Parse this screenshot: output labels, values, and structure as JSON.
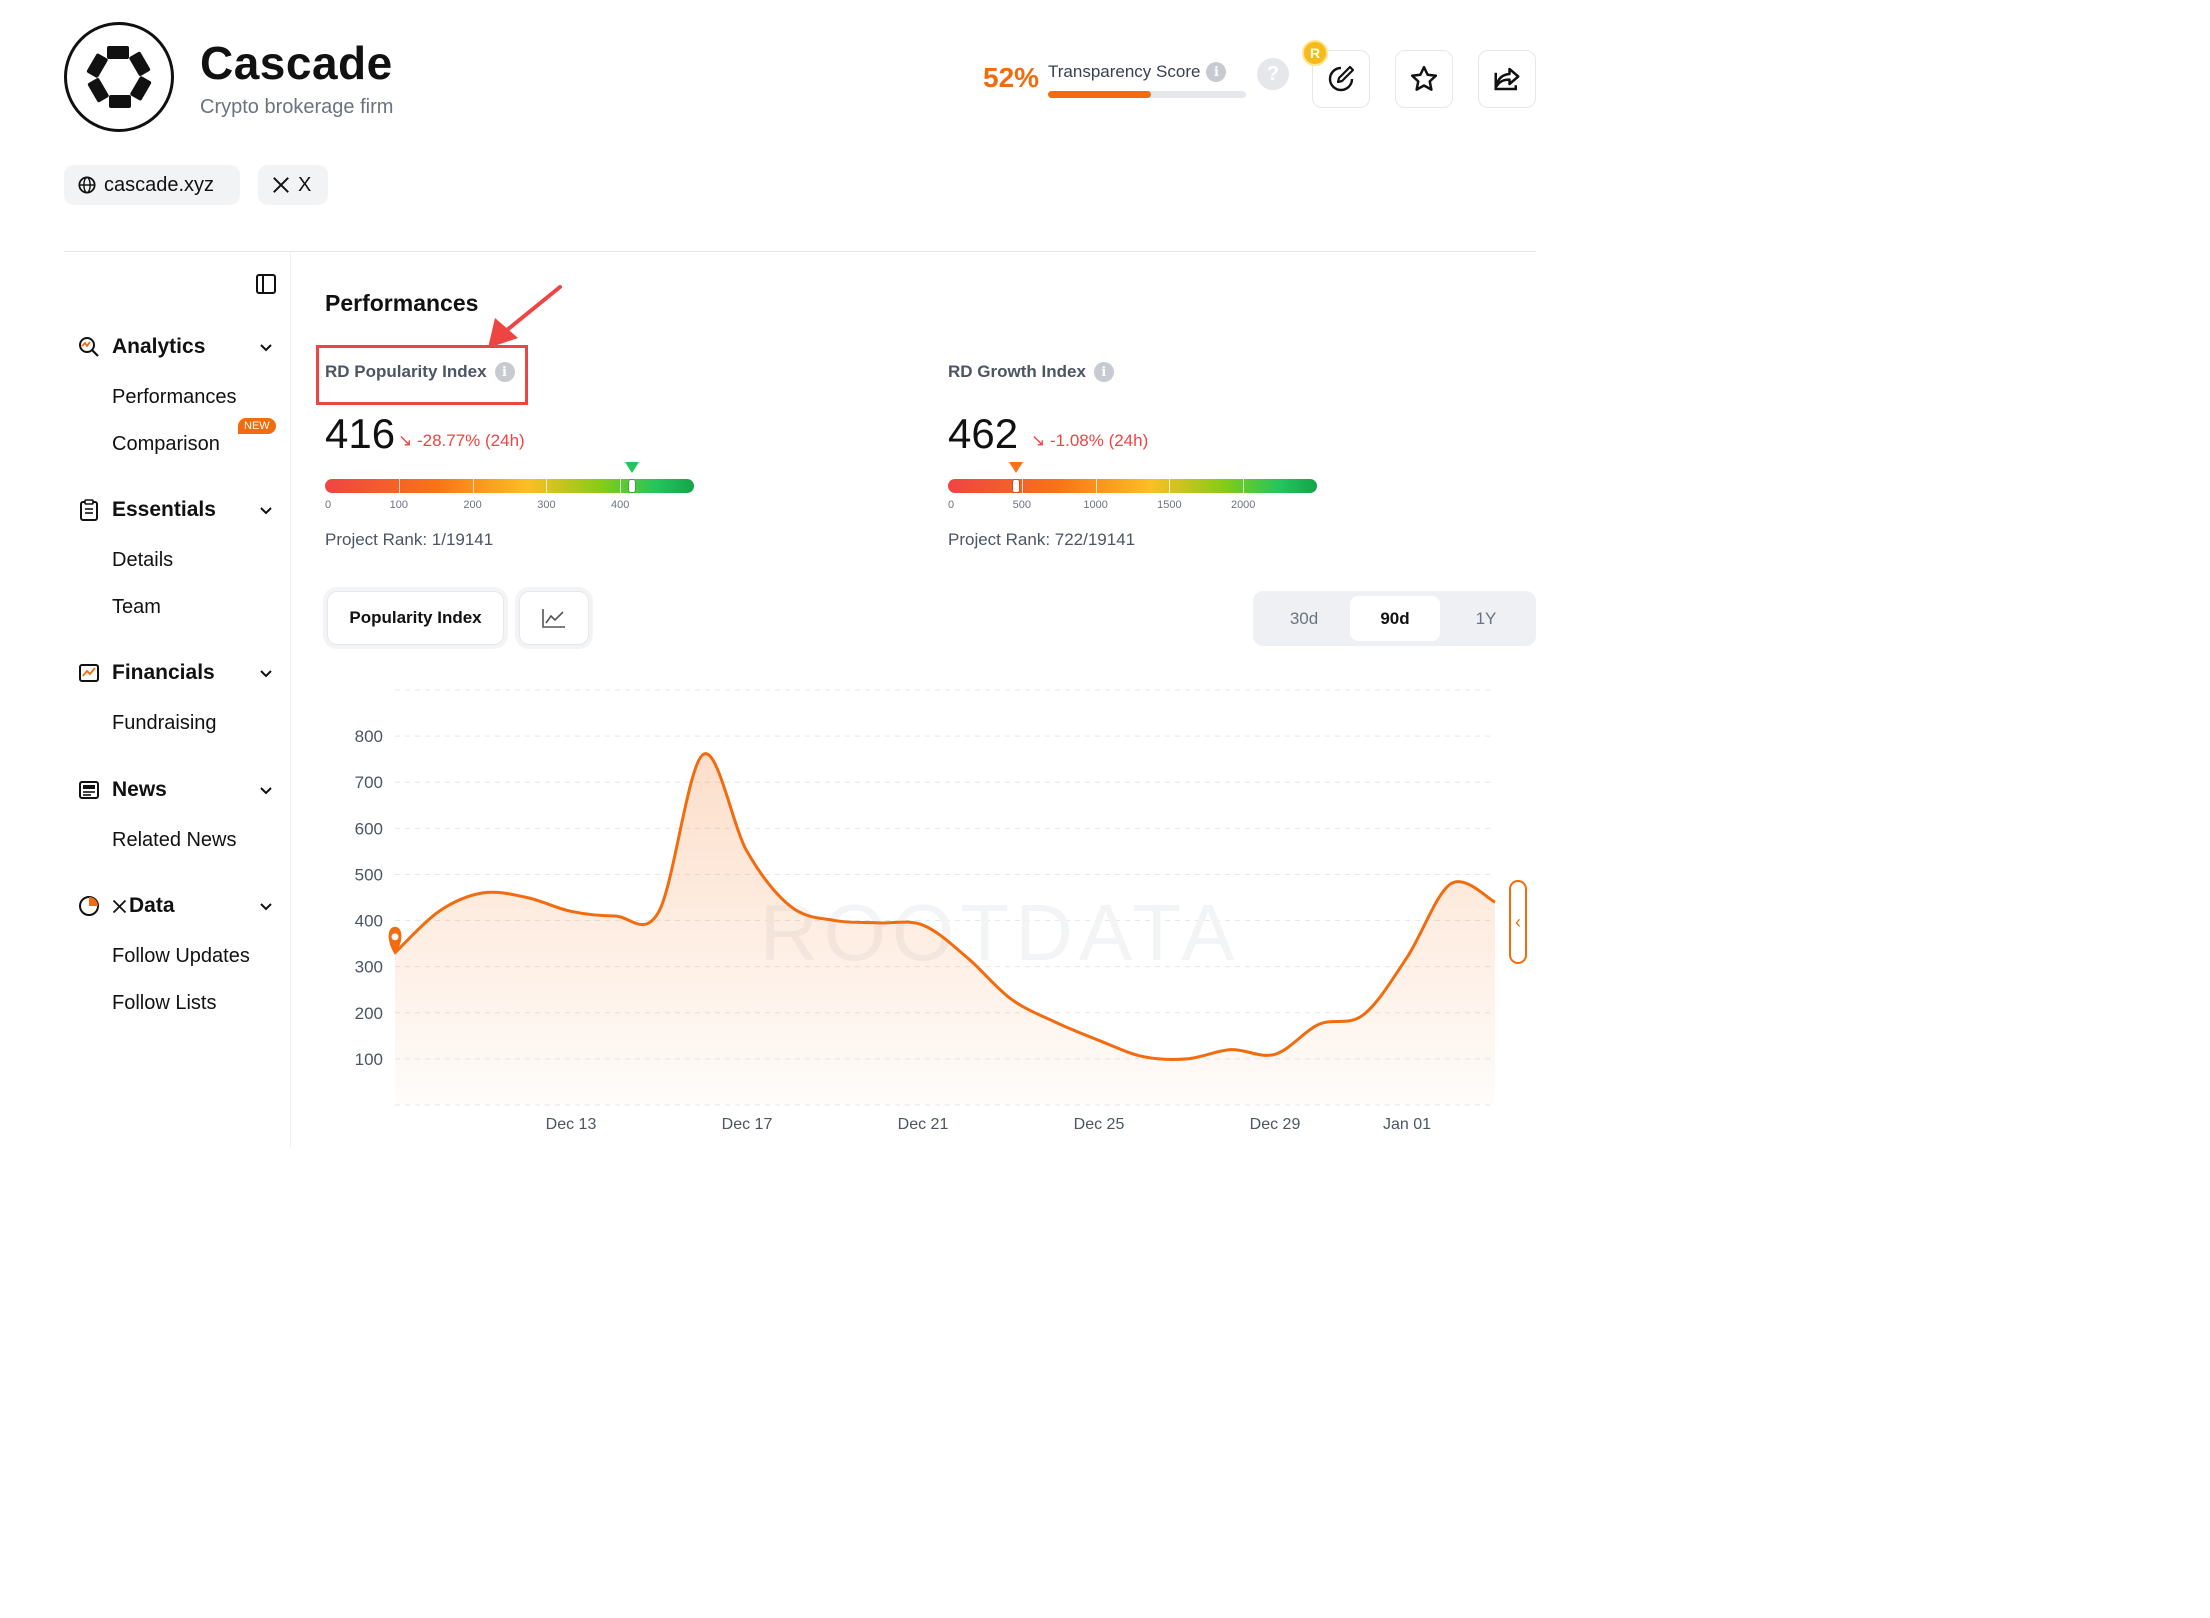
{
  "header": {
    "title": "Cascade",
    "subtitle": "Crypto brokerage firm",
    "links": [
      {
        "label": "cascade.xyz",
        "icon": "globe-icon"
      },
      {
        "label": "X",
        "icon": "x-logo-icon"
      }
    ],
    "transparency": {
      "percent_text": "52%",
      "label": "Transparency Score",
      "value": 0.52
    },
    "coin_badge": "R"
  },
  "sidebar": {
    "groups": [
      {
        "label": "Analytics",
        "icon": "analytics-icon",
        "items": [
          "Performances",
          "Comparison"
        ]
      },
      {
        "label": "Essentials",
        "icon": "clipboard-icon",
        "items": [
          "Details",
          "Team"
        ]
      },
      {
        "label": "Financials",
        "icon": "financials-icon",
        "items": [
          "Fundraising"
        ]
      },
      {
        "label": "News",
        "icon": "news-icon",
        "items": [
          "Related News"
        ]
      },
      {
        "label": "Data",
        "icon": "pie-icon",
        "items": [
          "Follow Updates",
          "Follow Lists"
        ]
      }
    ],
    "new_badge": "NEW"
  },
  "main": {
    "title": "Performances",
    "popularity": {
      "label": "RD Popularity Index",
      "value": "416",
      "delta": "-28.77% (24h)",
      "ticks": [
        "0",
        "100",
        "200",
        "300",
        "400"
      ],
      "rank": "Project Rank: 1/19141",
      "gauge_value": 416,
      "gauge_max": 500
    },
    "growth": {
      "label": "RD Growth Index",
      "value": "462",
      "delta": "-1.08% (24h)",
      "ticks": [
        "0",
        "500",
        "1000",
        "1500",
        "2000"
      ],
      "rank": "Project Rank: 722/19141",
      "gauge_value": 462,
      "gauge_max": 2500
    },
    "chart_tab": "Popularity Index",
    "ranges": [
      "30d",
      "90d",
      "1Y"
    ],
    "active_range": "90d"
  },
  "chart_data": {
    "type": "area",
    "color": "#f26b0f",
    "ylim": [
      0,
      900
    ],
    "yticks": [
      100,
      200,
      300,
      400,
      500,
      600,
      700,
      800
    ],
    "xticks": [
      "Dec 13",
      "Dec 17",
      "Dec 21",
      "Dec 25",
      "Dec 29",
      "Jan 01"
    ],
    "watermark": "ROOTDATA",
    "x": [
      "Dec 9",
      "Dec 10",
      "Dec 11",
      "Dec 12",
      "Dec 13",
      "Dec 14",
      "Dec 15",
      "Dec 16",
      "Dec 17",
      "Dec 18",
      "Dec 19",
      "Dec 20",
      "Dec 21",
      "Dec 22",
      "Dec 23",
      "Dec 24",
      "Dec 25",
      "Dec 26",
      "Dec 27",
      "Dec 28",
      "Dec 29",
      "Dec 30",
      "Dec 31",
      "Jan 01",
      "Jan 02",
      "Jan 03"
    ],
    "values": [
      330,
      420,
      460,
      450,
      420,
      410,
      420,
      760,
      550,
      430,
      400,
      395,
      390,
      320,
      230,
      180,
      140,
      105,
      100,
      120,
      110,
      175,
      195,
      320,
      480,
      440
    ]
  }
}
